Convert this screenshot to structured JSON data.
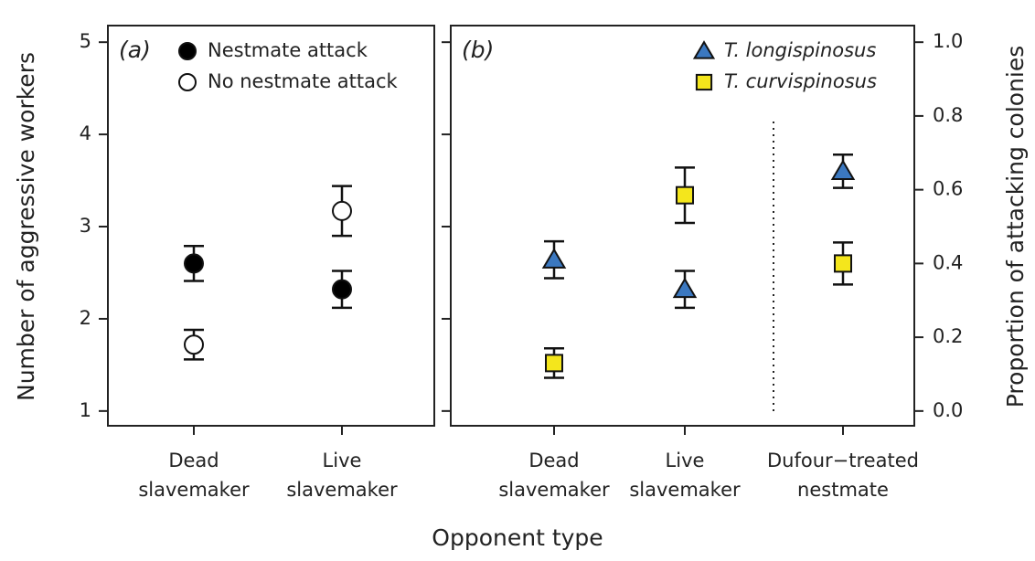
{
  "xlabel": "Opponent type",
  "chart_data": [
    {
      "type": "scatter",
      "panel_label": "(a)",
      "ylabel": "Number of aggressive workers",
      "categories": [
        [
          "Dead",
          "slavemaker"
        ],
        [
          "Live",
          "slavemaker"
        ]
      ],
      "ylim": [
        0.84,
        5.18
      ],
      "yticks": [
        1,
        2,
        3,
        4,
        5
      ],
      "legend": "top-right",
      "series": [
        {
          "name": "Nestmate attack",
          "marker": "circle",
          "color": "#000000",
          "values": [
            2.6,
            2.32
          ],
          "errors": [
            0.19,
            0.2
          ]
        },
        {
          "name": "No nestmate attack",
          "marker": "circle",
          "color": "#ffffff",
          "values": [
            1.72,
            3.17
          ],
          "errors": [
            0.16,
            0.27
          ]
        }
      ]
    },
    {
      "type": "scatter",
      "panel_label": "(b)",
      "y2label": "Proportion of attacking colonies",
      "categories": [
        [
          "Dead",
          "slavemaker"
        ],
        [
          "Live",
          "slavemaker"
        ],
        [
          "Dufour−treated",
          "nestmate"
        ]
      ],
      "y2lim": [
        -0.04,
        1.045
      ],
      "y2ticks": [
        {
          "value": 0,
          "label": "0.0"
        },
        0.2,
        0.4,
        0.6,
        0.8,
        {
          "value": 1,
          "label": "1.0"
        }
      ],
      "legend": "top-right",
      "series": [
        {
          "name": "T. longispinosus",
          "marker": "triangle",
          "color": "#3b78c0",
          "axis": "y2",
          "values": [
            0.41,
            0.33,
            0.65
          ],
          "errors": [
            0.05,
            0.05,
            0.045
          ]
        },
        {
          "name": "T. curvispinosus",
          "marker": "square",
          "color": "#f4e61c",
          "axis": "y2",
          "values": [
            0.13,
            0.585,
            0.4
          ],
          "errors": [
            0.04,
            0.075,
            0.057
          ]
        }
      ]
    }
  ]
}
